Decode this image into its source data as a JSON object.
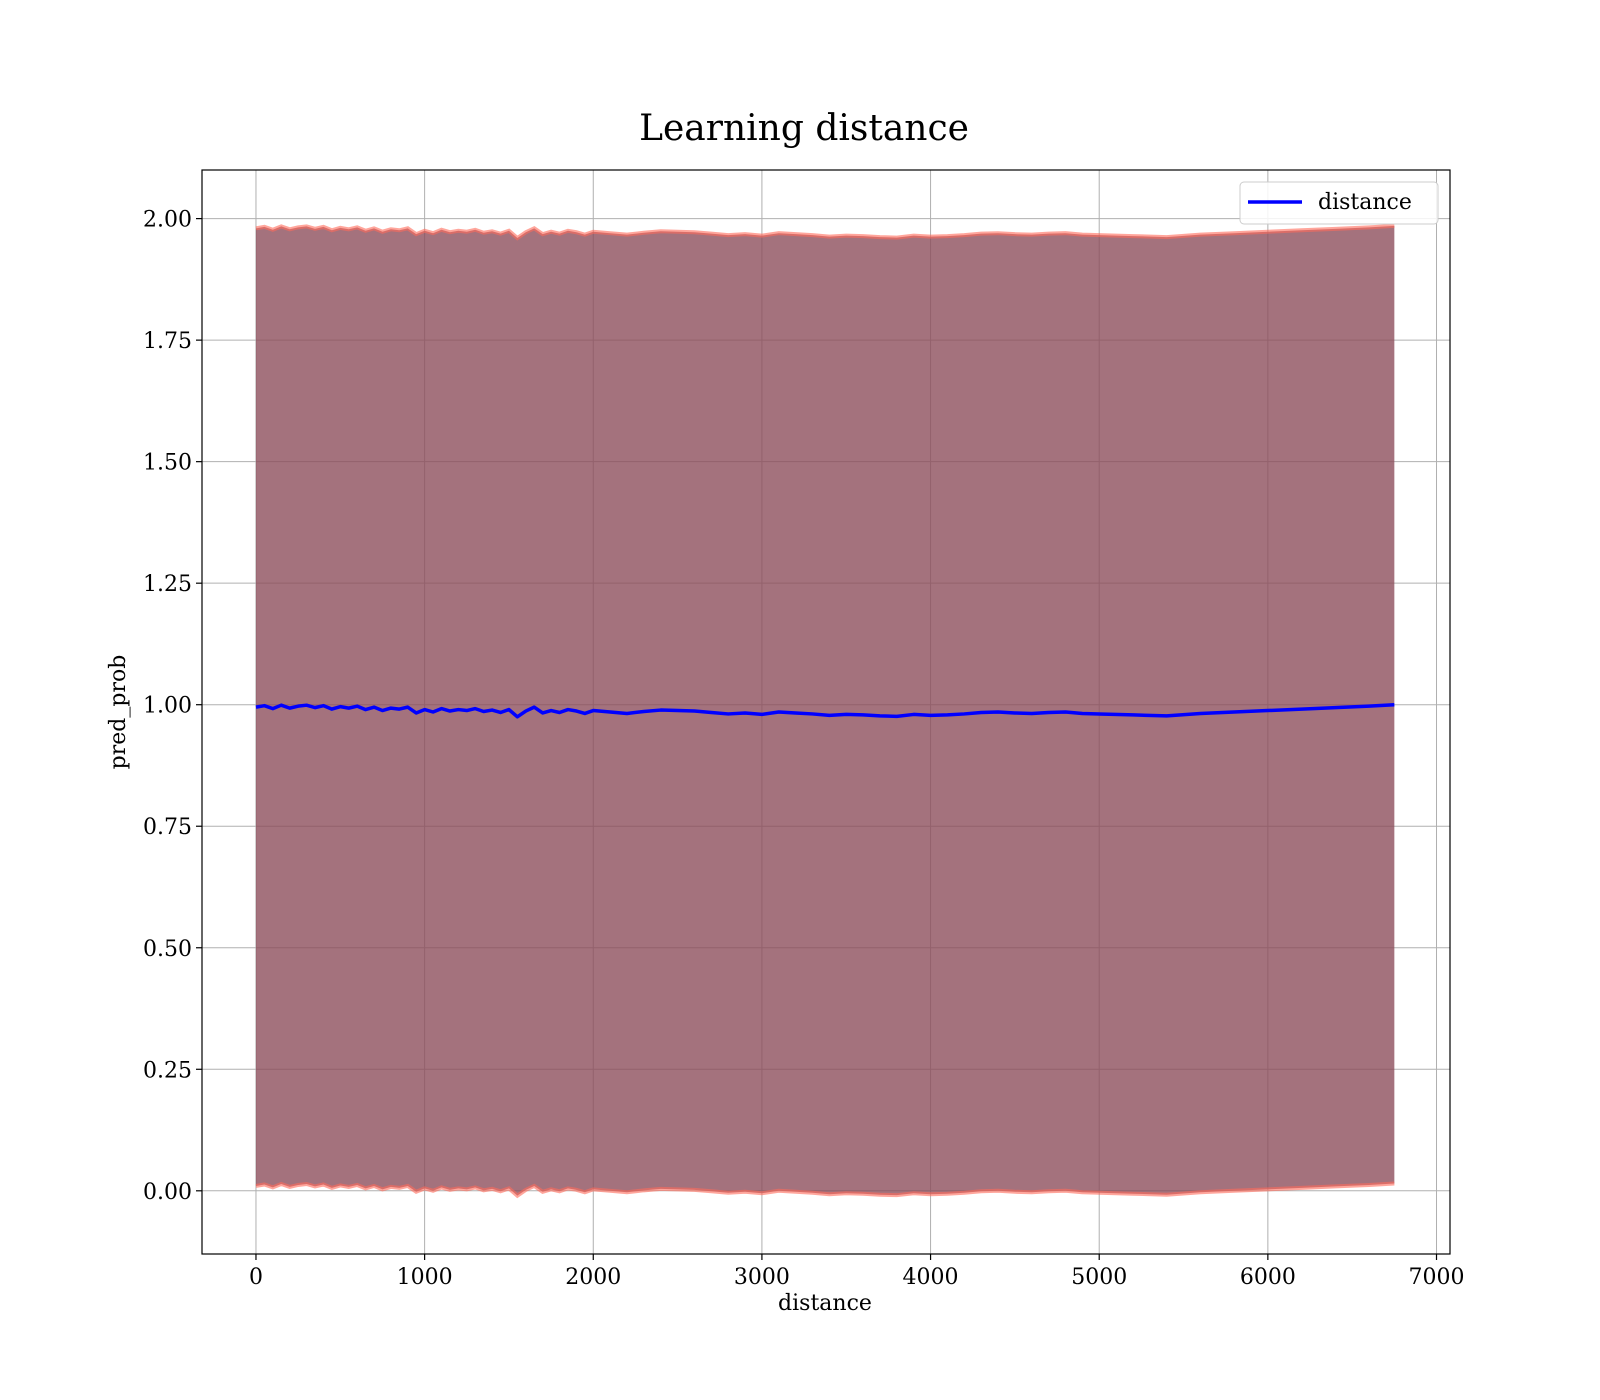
{
  "chart_data": {
    "type": "line",
    "title": "Learning distance",
    "xlabel": "distance",
    "ylabel": "pred_prob",
    "xlim": [
      -320,
      7080
    ],
    "ylim": [
      -0.13,
      2.1
    ],
    "xticks": [
      0,
      1000,
      2000,
      3000,
      4000,
      5000,
      6000,
      7000
    ],
    "xtick_labels": [
      "0",
      "1000",
      "2000",
      "3000",
      "4000",
      "5000",
      "6000",
      "7000"
    ],
    "yticks": [
      0,
      0.25,
      0.5,
      0.75,
      1.0,
      1.25,
      1.5,
      1.75,
      2.0
    ],
    "ytick_labels": [
      "0.00",
      "0.25",
      "0.50",
      "0.75",
      "1.00",
      "1.25",
      "1.50",
      "1.75",
      "2.00"
    ],
    "grid": true,
    "legend": {
      "position": "top-right",
      "entries": [
        {
          "label": "distance",
          "color": "#0000ff"
        }
      ]
    },
    "series": [
      {
        "name": "distance",
        "color": "#0000ff",
        "x": [
          0,
          50,
          100,
          150,
          200,
          250,
          300,
          350,
          400,
          450,
          500,
          550,
          600,
          650,
          700,
          750,
          800,
          850,
          900,
          950,
          1000,
          1050,
          1100,
          1150,
          1200,
          1250,
          1300,
          1350,
          1400,
          1450,
          1500,
          1550,
          1600,
          1650,
          1700,
          1750,
          1800,
          1850,
          1900,
          1950,
          2000,
          2100,
          2200,
          2300,
          2400,
          2500,
          2600,
          2700,
          2800,
          2900,
          3000,
          3100,
          3200,
          3300,
          3400,
          3500,
          3600,
          3700,
          3800,
          3900,
          4000,
          4100,
          4200,
          4300,
          4400,
          4500,
          4600,
          4700,
          4800,
          4900,
          5000,
          5200,
          5400,
          5600,
          5800,
          6000,
          6200,
          6400,
          6600,
          6750
        ],
        "y": [
          0.995,
          0.998,
          0.992,
          0.999,
          0.993,
          0.997,
          0.999,
          0.994,
          0.998,
          0.991,
          0.996,
          0.993,
          0.997,
          0.99,
          0.995,
          0.988,
          0.993,
          0.991,
          0.995,
          0.983,
          0.99,
          0.985,
          0.992,
          0.987,
          0.99,
          0.988,
          0.992,
          0.986,
          0.989,
          0.984,
          0.99,
          0.975,
          0.987,
          0.995,
          0.983,
          0.988,
          0.984,
          0.99,
          0.987,
          0.982,
          0.988,
          0.985,
          0.982,
          0.986,
          0.989,
          0.988,
          0.987,
          0.984,
          0.981,
          0.983,
          0.98,
          0.985,
          0.983,
          0.981,
          0.978,
          0.98,
          0.979,
          0.977,
          0.976,
          0.98,
          0.978,
          0.979,
          0.981,
          0.984,
          0.985,
          0.983,
          0.982,
          0.984,
          0.985,
          0.982,
          0.981,
          0.979,
          0.977,
          0.982,
          0.985,
          0.988,
          0.991,
          0.994,
          0.997,
          1.0
        ]
      }
    ],
    "band": {
      "fill": "#8b4a58",
      "outline_upper": "#ff6a5a",
      "outline_lower": "#ff6a5a",
      "upper_offset": 0.985,
      "lower_offset": 0.985
    }
  }
}
